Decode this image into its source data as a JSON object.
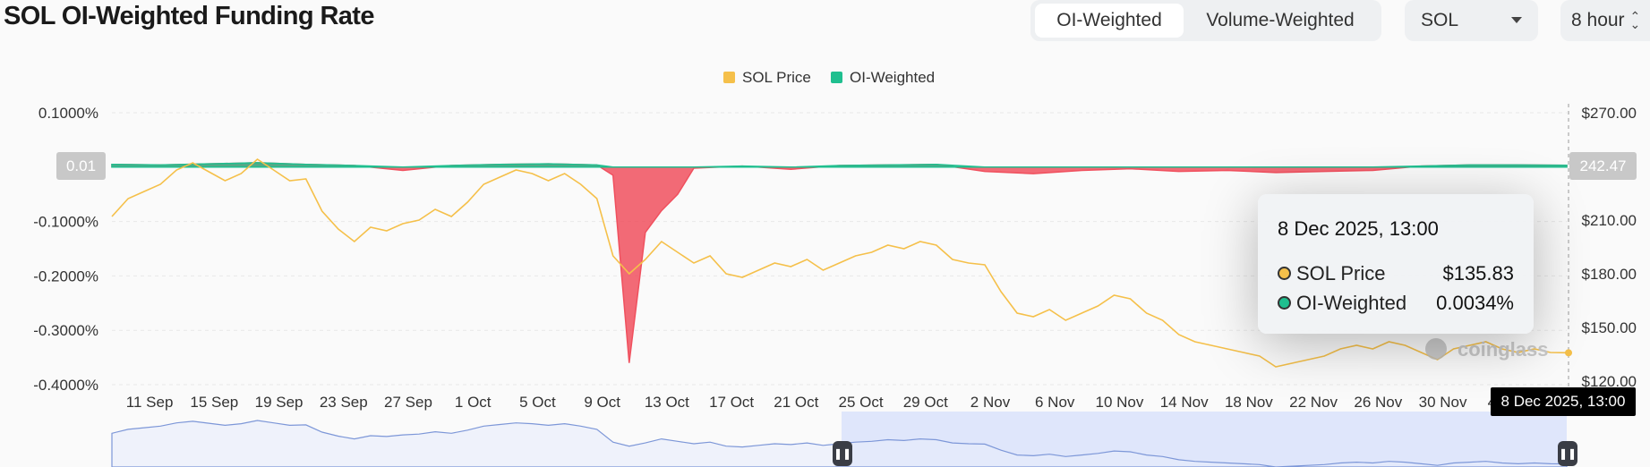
{
  "header": {
    "title": "SOL OI-Weighted Funding Rate",
    "weighting_options": [
      "OI-Weighted",
      "Volume-Weighted"
    ],
    "weighting_selected": "OI-Weighted",
    "symbol": "SOL",
    "interval": "8 hour"
  },
  "colors": {
    "price": "#f5c04a",
    "positive": "#1fbf8f",
    "negative": "#f0505e",
    "grid": "#e8e8e8",
    "navigator_fill": "#dfe6fb",
    "navigator_line": "#7d97d8"
  },
  "icons": {
    "symbol_select": "caret-down-icon",
    "interval_select": "up-down-chevron-icon",
    "navigator_handles": "drag-handle-icon",
    "watermark": "coinglass-logo"
  },
  "watermark": "coinglass",
  "crosshair": {
    "left_badge": "0.01",
    "right_badge": "242.47",
    "x_flag": "8 Dec 2025, 13:00"
  },
  "tooltip": {
    "time": "8 Dec 2025, 13:00",
    "rows": [
      {
        "name": "SOL Price",
        "value": "$135.83",
        "color": "#f5c04a"
      },
      {
        "name": "OI-Weighted",
        "value": "0.0034%",
        "color": "#1fbf8f"
      }
    ]
  },
  "chart_data": {
    "type": "line",
    "title": "SOL OI-Weighted Funding Rate",
    "legend": [
      "SOL Price",
      "OI-Weighted"
    ],
    "legend_position": "top-center",
    "grid": true,
    "x_ticks": [
      "11 Sep",
      "15 Sep",
      "19 Sep",
      "23 Sep",
      "27 Sep",
      "1 Oct",
      "5 Oct",
      "9 Oct",
      "13 Oct",
      "17 Oct",
      "21 Oct",
      "25 Oct",
      "29 Oct",
      "2 Nov",
      "6 Nov",
      "10 Nov",
      "14 Nov",
      "18 Nov",
      "22 Nov",
      "26 Nov",
      "30 Nov",
      "4 Dec",
      "8 Dec"
    ],
    "x_range": [
      "2025-09-09",
      "2025-12-08"
    ],
    "y_left": {
      "ticks": [
        "0.1000%",
        "-0.1000%",
        "-0.2000%",
        "-0.3000%",
        "-0.4000%"
      ],
      "range": [
        -0.4,
        0.1
      ],
      "unit": "%"
    },
    "y_right": {
      "ticks": [
        "$270.00",
        "$210.00",
        "$180.00",
        "$150.00",
        "$120.00"
      ],
      "range": [
        118,
        270
      ]
    },
    "series": [
      {
        "name": "SOL Price",
        "axis": "right",
        "x": [
          "2025-09-09",
          "2025-09-10",
          "2025-09-11",
          "2025-09-12",
          "2025-09-13",
          "2025-09-14",
          "2025-09-15",
          "2025-09-16",
          "2025-09-17",
          "2025-09-18",
          "2025-09-19",
          "2025-09-20",
          "2025-09-21",
          "2025-09-22",
          "2025-09-23",
          "2025-09-24",
          "2025-09-25",
          "2025-09-26",
          "2025-09-27",
          "2025-09-28",
          "2025-09-29",
          "2025-09-30",
          "2025-10-01",
          "2025-10-02",
          "2025-10-03",
          "2025-10-04",
          "2025-10-05",
          "2025-10-06",
          "2025-10-07",
          "2025-10-08",
          "2025-10-09",
          "2025-10-10",
          "2025-10-11",
          "2025-10-12",
          "2025-10-13",
          "2025-10-14",
          "2025-10-15",
          "2025-10-16",
          "2025-10-17",
          "2025-10-18",
          "2025-10-19",
          "2025-10-20",
          "2025-10-21",
          "2025-10-22",
          "2025-10-23",
          "2025-10-24",
          "2025-10-25",
          "2025-10-26",
          "2025-10-27",
          "2025-10-28",
          "2025-10-29",
          "2025-10-30",
          "2025-10-31",
          "2025-11-01",
          "2025-11-02",
          "2025-11-03",
          "2025-11-04",
          "2025-11-05",
          "2025-11-06",
          "2025-11-07",
          "2025-11-08",
          "2025-11-09",
          "2025-11-10",
          "2025-11-11",
          "2025-11-12",
          "2025-11-13",
          "2025-11-14",
          "2025-11-15",
          "2025-11-16",
          "2025-11-17",
          "2025-11-18",
          "2025-11-19",
          "2025-11-20",
          "2025-11-21",
          "2025-11-22",
          "2025-11-23",
          "2025-11-24",
          "2025-11-25",
          "2025-11-26",
          "2025-11-27",
          "2025-11-28",
          "2025-11-29",
          "2025-11-30",
          "2025-12-01",
          "2025-12-02",
          "2025-12-03",
          "2025-12-04",
          "2025-12-05",
          "2025-12-06",
          "2025-12-07",
          "2025-12-08"
        ],
        "y": [
          212,
          222,
          226,
          230,
          238,
          242,
          237,
          232,
          236,
          244,
          238,
          232,
          233,
          215,
          205,
          198,
          206,
          204,
          208,
          210,
          216,
          212,
          220,
          230,
          234,
          238,
          236,
          232,
          236,
          230,
          222,
          190,
          180,
          188,
          198,
          192,
          186,
          190,
          180,
          178,
          182,
          186,
          184,
          188,
          182,
          186,
          190,
          192,
          196,
          194,
          198,
          196,
          188,
          186,
          185,
          170,
          158,
          156,
          160,
          154,
          158,
          162,
          168,
          166,
          158,
          154,
          146,
          142,
          140,
          138,
          136,
          134,
          128,
          130,
          132,
          134,
          138,
          140,
          138,
          142,
          140,
          136,
          132,
          138,
          140,
          142,
          138,
          136,
          138,
          136,
          135.83
        ]
      },
      {
        "name": "OI-Weighted",
        "axis": "left",
        "x": [
          "2025-09-09",
          "2025-09-12",
          "2025-09-15",
          "2025-09-18",
          "2025-09-21",
          "2025-09-24",
          "2025-09-27",
          "2025-09-30",
          "2025-10-03",
          "2025-10-06",
          "2025-10-09",
          "2025-10-10",
          "2025-10-11",
          "2025-10-12",
          "2025-10-13",
          "2025-10-14",
          "2025-10-15",
          "2025-10-18",
          "2025-10-21",
          "2025-10-24",
          "2025-10-27",
          "2025-10-30",
          "2025-11-02",
          "2025-11-05",
          "2025-11-08",
          "2025-11-11",
          "2025-11-14",
          "2025-11-17",
          "2025-11-20",
          "2025-11-23",
          "2025-11-26",
          "2025-11-29",
          "2025-12-02",
          "2025-12-05",
          "2025-12-08"
        ],
        "y": [
          0.005,
          0.004,
          0.006,
          0.008,
          0.005,
          0.003,
          -0.006,
          0.003,
          0.005,
          0.006,
          0.004,
          -0.015,
          -0.36,
          -0.12,
          -0.08,
          -0.05,
          -0.002,
          0.002,
          -0.004,
          0.003,
          0.004,
          0.005,
          -0.008,
          -0.012,
          -0.006,
          -0.003,
          -0.008,
          -0.006,
          -0.01,
          -0.008,
          -0.006,
          0.002,
          0.004,
          0.004,
          0.0034
        ]
      }
    ]
  }
}
